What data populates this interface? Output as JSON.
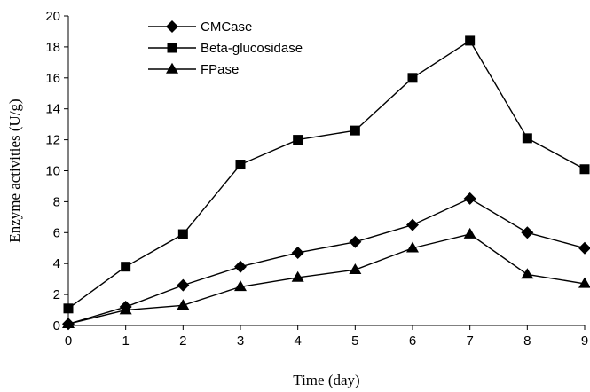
{
  "chart_data": {
    "type": "line",
    "title": "",
    "xlabel": "Time (day)",
    "ylabel": "Enzyme activities (U/g)",
    "x": [
      0,
      1,
      2,
      3,
      4,
      5,
      6,
      7,
      8,
      9
    ],
    "xlim": [
      0,
      9
    ],
    "ylim": [
      0,
      20
    ],
    "x_ticks": [
      0,
      1,
      2,
      3,
      4,
      5,
      6,
      7,
      8,
      9
    ],
    "y_ticks": [
      0,
      2,
      4,
      6,
      8,
      10,
      12,
      14,
      16,
      18,
      20
    ],
    "grid": false,
    "legend_position": "top-left",
    "series": [
      {
        "name": "CMCase",
        "marker": "diamond",
        "color": "#000000",
        "values": [
          0.1,
          1.2,
          2.6,
          3.8,
          4.7,
          5.4,
          6.5,
          8.2,
          6.0,
          5.0
        ]
      },
      {
        "name": "Beta-glucosidase",
        "marker": "square",
        "color": "#000000",
        "values": [
          1.1,
          3.8,
          5.9,
          10.4,
          12.0,
          12.6,
          16.0,
          18.4,
          12.1,
          10.1
        ]
      },
      {
        "name": "FPase",
        "marker": "triangle",
        "color": "#000000",
        "values": [
          0.1,
          1.0,
          1.3,
          2.5,
          3.1,
          3.6,
          5.0,
          5.9,
          3.3,
          2.7
        ]
      }
    ]
  }
}
